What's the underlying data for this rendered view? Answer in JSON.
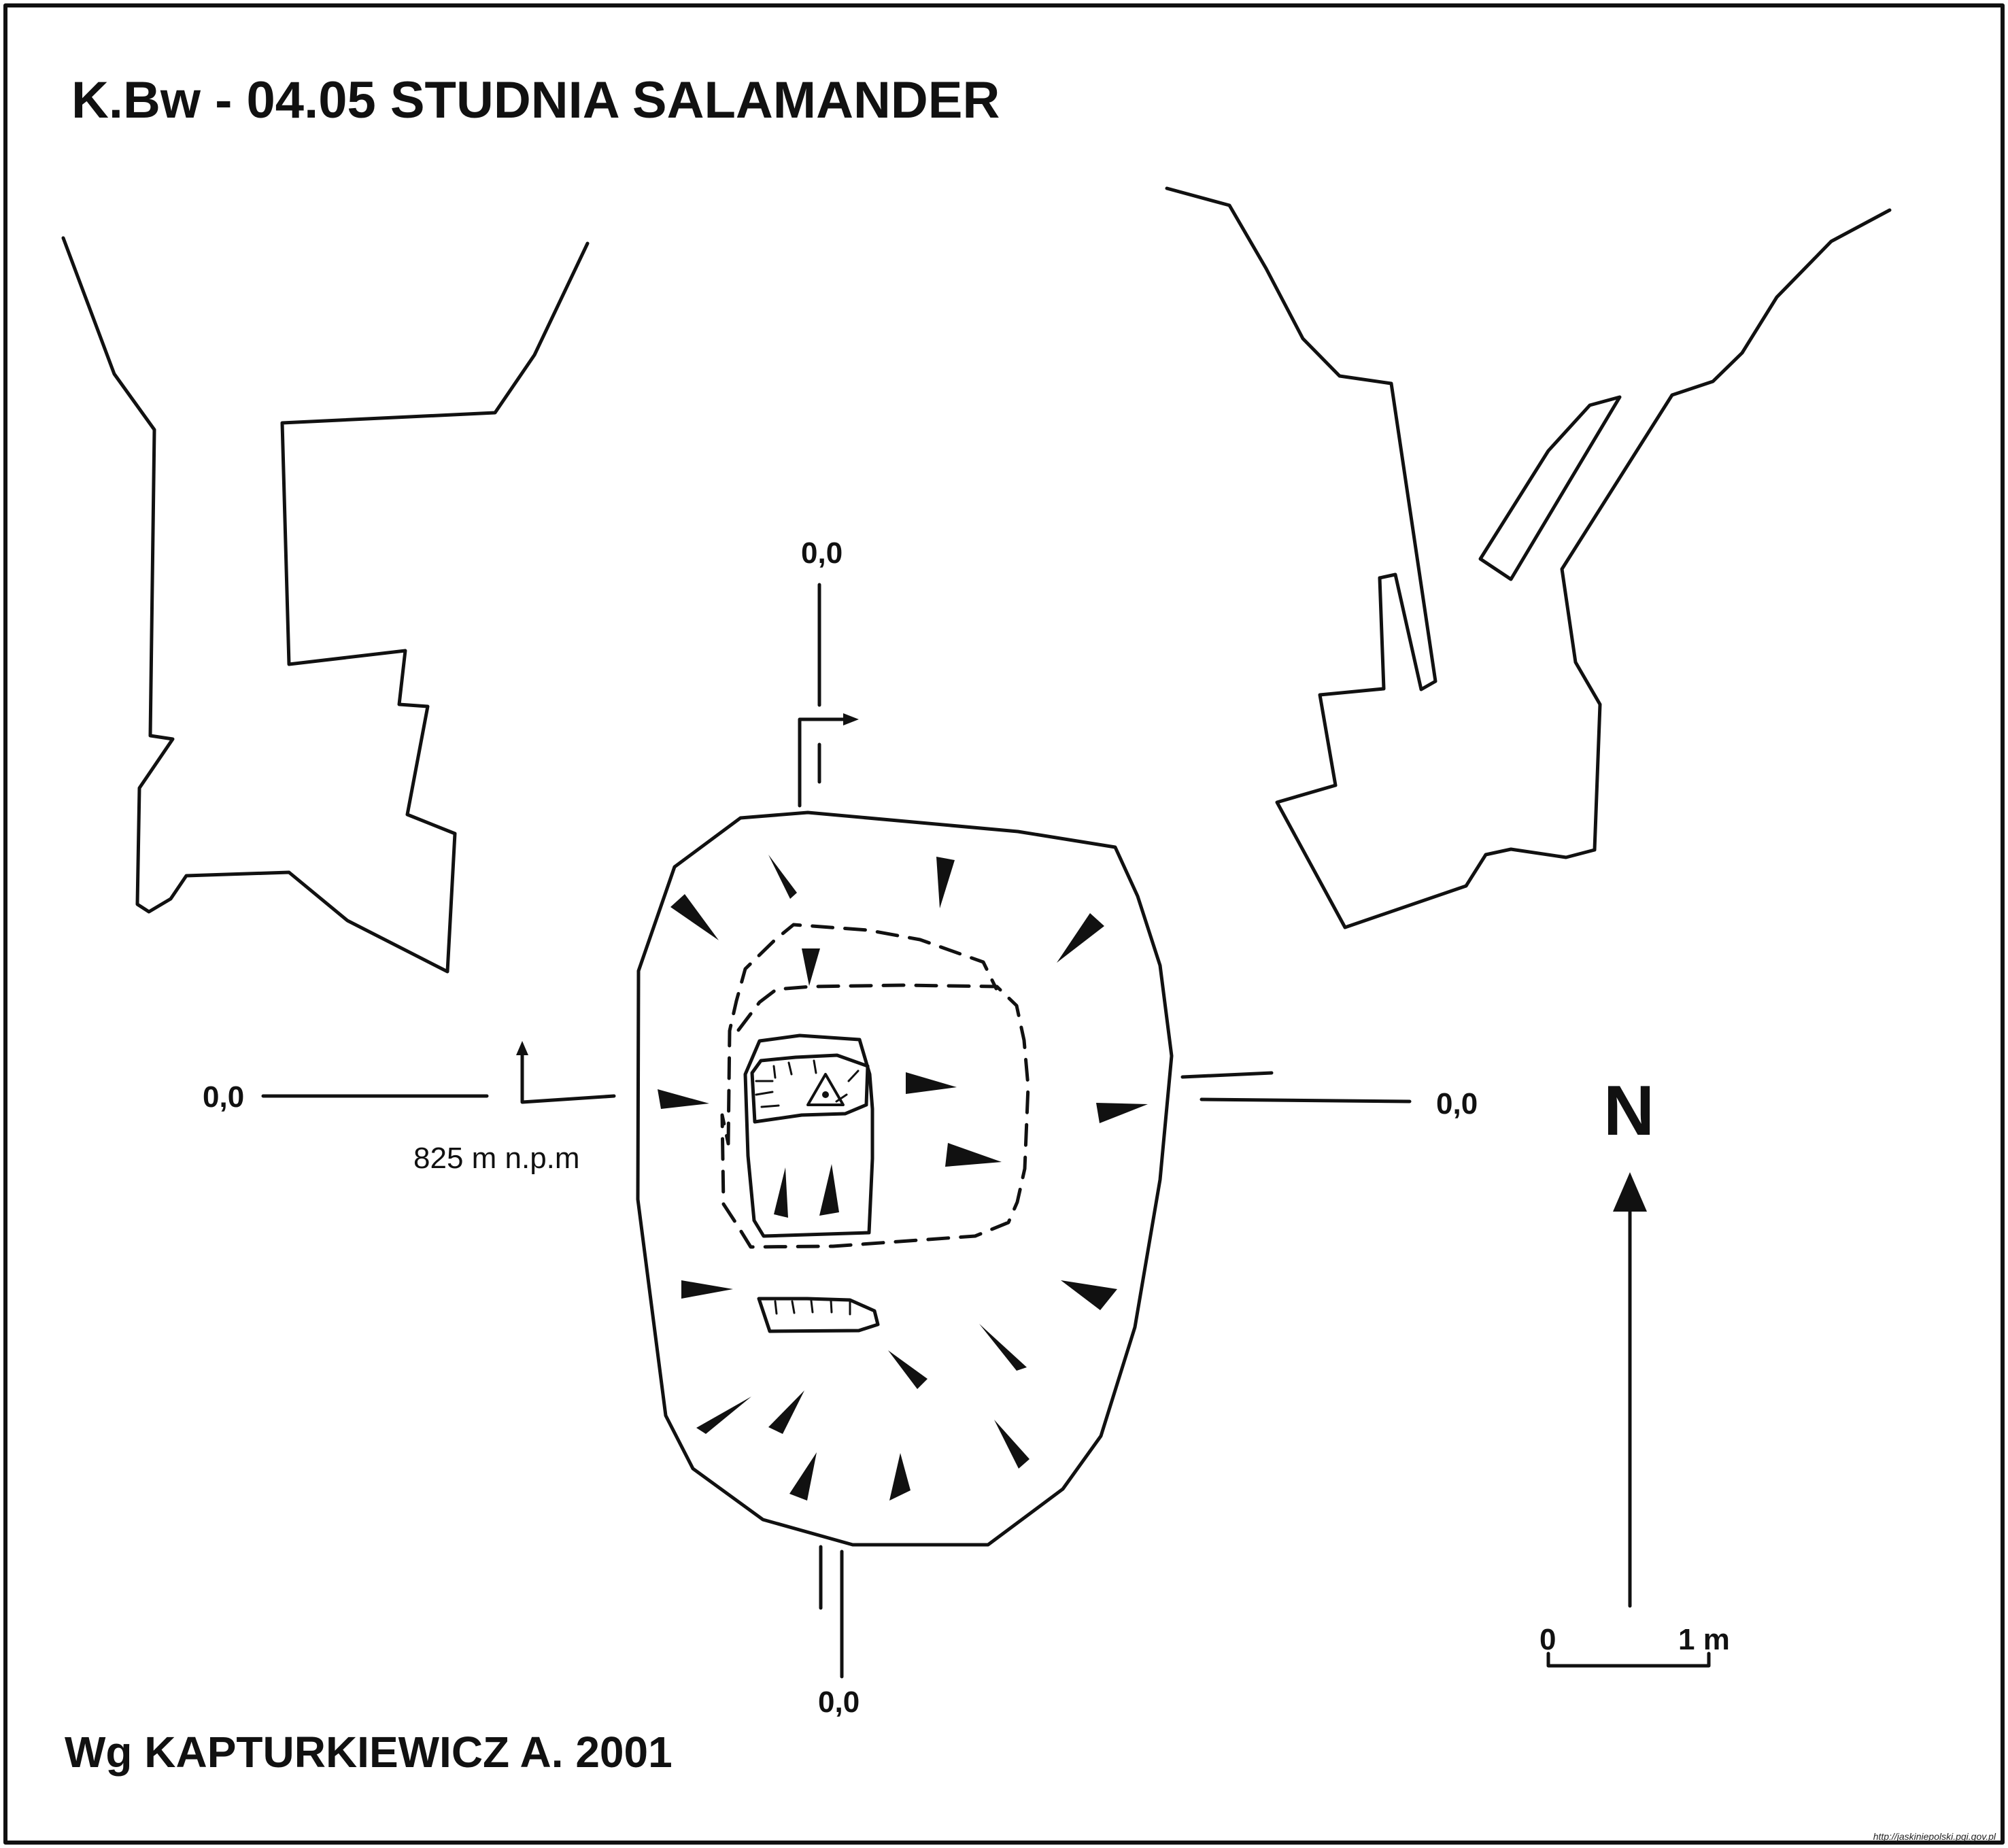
{
  "map": {
    "title": "K.Bw - 04.05  STUDNIA SALAMANDER",
    "author": "Wg KAPTURKIEWICZ A. 2001",
    "datum_labels": {
      "top": "0,0",
      "left": "0,0",
      "right": "0,0",
      "bottom": "0,0"
    },
    "altitude": "825 m n.p.m",
    "north_label": "N",
    "scale": {
      "start_label": "0",
      "end_label": "1 m"
    },
    "source": "http://jaskiniepolski.pgi.gov.pl",
    "colors": {
      "ink": "#111111",
      "background": "#ffffff"
    }
  }
}
